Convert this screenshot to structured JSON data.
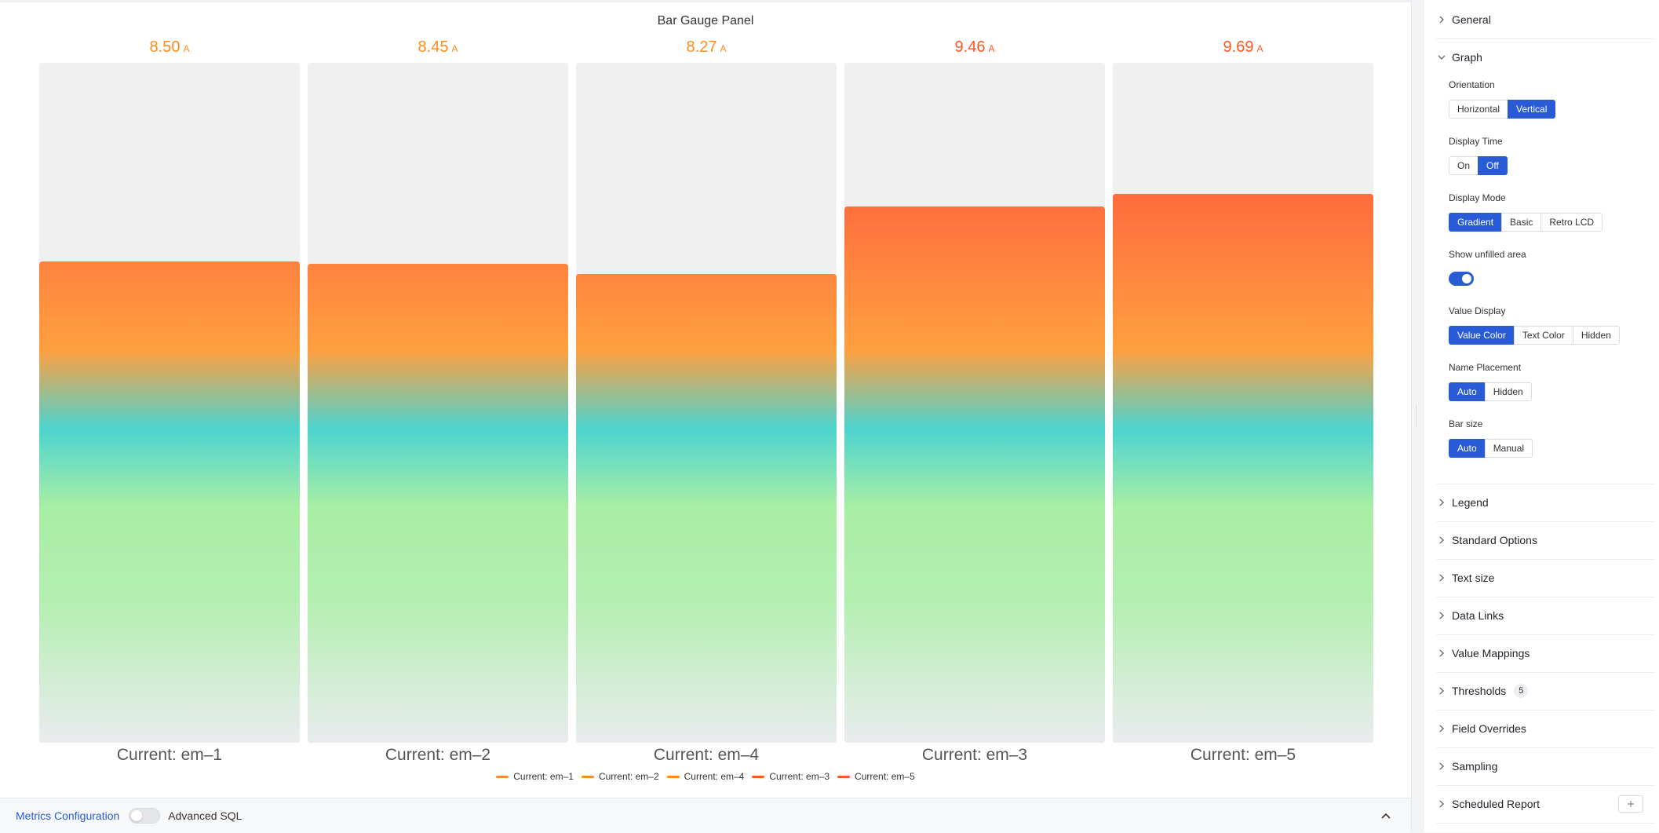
{
  "panel": {
    "title": "Bar Gauge Panel"
  },
  "chart_data": {
    "type": "bar",
    "orientation": "vertical",
    "categories": [
      "Current: em–1",
      "Current: em–2",
      "Current: em–4",
      "Current: em–3",
      "Current: em–5"
    ],
    "values": [
      8.5,
      8.45,
      8.27,
      9.46,
      9.69
    ],
    "value_labels": [
      "8.50",
      "8.45",
      "8.27",
      "9.46",
      "9.69"
    ],
    "unit": "A",
    "ylim": [
      0,
      12
    ],
    "value_colors": [
      "#ff8c1a",
      "#ff8c1a",
      "#ff8c1a",
      "#ff5722",
      "#ff5722"
    ],
    "legend": {
      "placement": "bottom-center",
      "entries": [
        {
          "name": "Current: em–1",
          "color": "#ff8c1a"
        },
        {
          "name": "Current: em–2",
          "color": "#ff8c1a"
        },
        {
          "name": "Current: em–4",
          "color": "#ff8c1a"
        },
        {
          "name": "Current: em–3",
          "color": "#ff5722"
        },
        {
          "name": "Current: em–5",
          "color": "#ff5722"
        }
      ]
    },
    "gradient_stops": [
      "#e9ecee",
      "#b4efb1",
      "#a8eea4",
      "#4dd3cf",
      "#ffa040",
      "#ff6b3d"
    ]
  },
  "bottom_bar": {
    "metrics_label": "Metrics Configuration",
    "advanced_sql_label": "Advanced SQL",
    "advanced_sql_on": false
  },
  "sidebar": {
    "general": "General",
    "graph": "Graph",
    "orientation": {
      "label": "Orientation",
      "options": [
        "Horizontal",
        "Vertical"
      ],
      "selected": "Vertical"
    },
    "display_time": {
      "label": "Display Time",
      "options": [
        "On",
        "Off"
      ],
      "selected": "Off"
    },
    "display_mode": {
      "label": "Display Mode",
      "options": [
        "Gradient",
        "Basic",
        "Retro LCD"
      ],
      "selected": "Gradient"
    },
    "show_unfilled": {
      "label": "Show unfilled area",
      "on": true
    },
    "value_display": {
      "label": "Value Display",
      "options": [
        "Value Color",
        "Text Color",
        "Hidden"
      ],
      "selected": "Value Color"
    },
    "name_placement": {
      "label": "Name Placement",
      "options": [
        "Auto",
        "Hidden"
      ],
      "selected": "Auto"
    },
    "bar_size": {
      "label": "Bar size",
      "options": [
        "Auto",
        "Manual"
      ],
      "selected": "Auto"
    },
    "sections": [
      "Legend",
      "Standard Options",
      "Text size",
      "Data Links",
      "Value Mappings",
      "Thresholds",
      "Field Overrides",
      "Sampling",
      "Scheduled Report"
    ],
    "thresholds_count": "5",
    "accent": "#2a5bd7"
  }
}
